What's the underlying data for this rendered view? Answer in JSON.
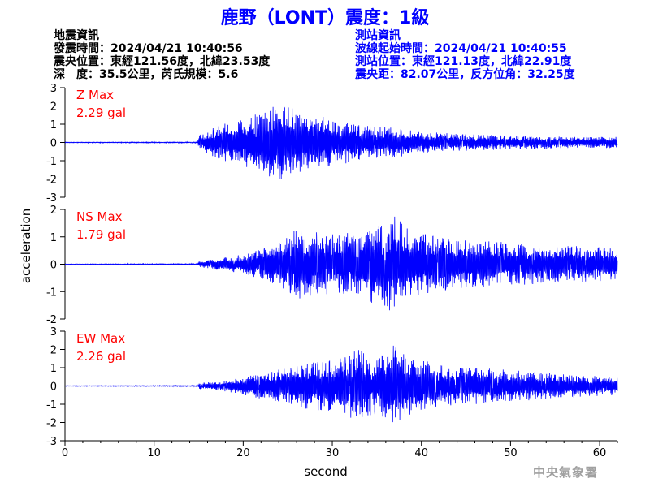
{
  "title": "鹿野（LONT）震度：1級",
  "earthquake_info": {
    "heading": "地震資訊",
    "time": "發震時間：2024/04/21 10:40:56",
    "epicenter": "震央位置：東經121.56度，北緯23.53度",
    "depth_magnitude": "深　度：35.5公里，芮氏規模：5.6"
  },
  "station_info": {
    "heading": "測站資訊",
    "wave_start": "波線起始時間：2024/04/21 10:40:55",
    "location": "測站位置：東經121.13度，北緯22.91度",
    "distance": "震央距：82.07公里，反方位角：32.25度"
  },
  "watermark": "中央氣象署",
  "colors": {
    "trace": "#0000ff",
    "max_label": "#ff0000",
    "title": "#0000ff",
    "axis": "#000000"
  },
  "chart_data": {
    "type": "line",
    "xlabel": "second",
    "ylabel": "acceleration",
    "xlim": [
      0,
      62
    ],
    "x_ticks": [
      0,
      10,
      20,
      30,
      40,
      50,
      60
    ],
    "x_tick_labels": [
      "0",
      "10",
      "20",
      "30",
      "40",
      "50",
      "60"
    ],
    "panels": [
      {
        "name": "Z",
        "max_label": "Z Max",
        "max_value": "2.29 gal",
        "ylim": [
          -3,
          3
        ],
        "y_ticks": [
          -3,
          -2,
          -1,
          0,
          1,
          2,
          3
        ],
        "y_tick_labels": [
          "-3",
          "-2",
          "-1",
          "0",
          "1",
          "2",
          "3"
        ],
        "envelope": [
          [
            0,
            0.02
          ],
          [
            14.9,
            0.03
          ],
          [
            15,
            0.4
          ],
          [
            17,
            0.9
          ],
          [
            20,
            1.4
          ],
          [
            22,
            1.6
          ],
          [
            24.5,
            2.29
          ],
          [
            26,
            1.8
          ],
          [
            28,
            1.5
          ],
          [
            30,
            1.3
          ],
          [
            33,
            1.0
          ],
          [
            36,
            0.9
          ],
          [
            40,
            0.6
          ],
          [
            45,
            0.45
          ],
          [
            52,
            0.35
          ],
          [
            62,
            0.3
          ]
        ]
      },
      {
        "name": "NS",
        "max_label": "NS Max",
        "max_value": "1.79 gal",
        "ylim": [
          -2,
          2
        ],
        "y_ticks": [
          -2,
          -1,
          0,
          1,
          2
        ],
        "y_tick_labels": [
          "-2",
          "-1",
          "0",
          "1",
          "2"
        ],
        "envelope": [
          [
            0,
            0.01
          ],
          [
            14.9,
            0.02
          ],
          [
            15,
            0.1
          ],
          [
            18,
            0.25
          ],
          [
            21,
            0.45
          ],
          [
            23,
            0.7
          ],
          [
            26,
            1.3
          ],
          [
            28,
            1.2
          ],
          [
            30,
            1.1
          ],
          [
            33,
            1.2
          ],
          [
            35,
            1.5
          ],
          [
            37,
            1.79
          ],
          [
            39,
            1.2
          ],
          [
            42,
            1.0
          ],
          [
            47,
            0.85
          ],
          [
            55,
            0.7
          ],
          [
            62,
            0.6
          ]
        ]
      },
      {
        "name": "EW",
        "max_label": "EW Max",
        "max_value": "2.26 gal",
        "ylim": [
          -3,
          3
        ],
        "y_ticks": [
          -3,
          -2,
          -1,
          0,
          1,
          2,
          3
        ],
        "y_tick_labels": [
          "-3",
          "-2",
          "-1",
          "0",
          "1",
          "2",
          "3"
        ],
        "envelope": [
          [
            0,
            0.02
          ],
          [
            14.9,
            0.03
          ],
          [
            15,
            0.15
          ],
          [
            18,
            0.3
          ],
          [
            21,
            0.6
          ],
          [
            24,
            0.9
          ],
          [
            26,
            1.2
          ],
          [
            30,
            1.4
          ],
          [
            33,
            2.0
          ],
          [
            35,
            1.6
          ],
          [
            37,
            2.26
          ],
          [
            39,
            1.6
          ],
          [
            42,
            1.2
          ],
          [
            47,
            1.0
          ],
          [
            55,
            0.7
          ],
          [
            62,
            0.5
          ]
        ]
      }
    ]
  }
}
